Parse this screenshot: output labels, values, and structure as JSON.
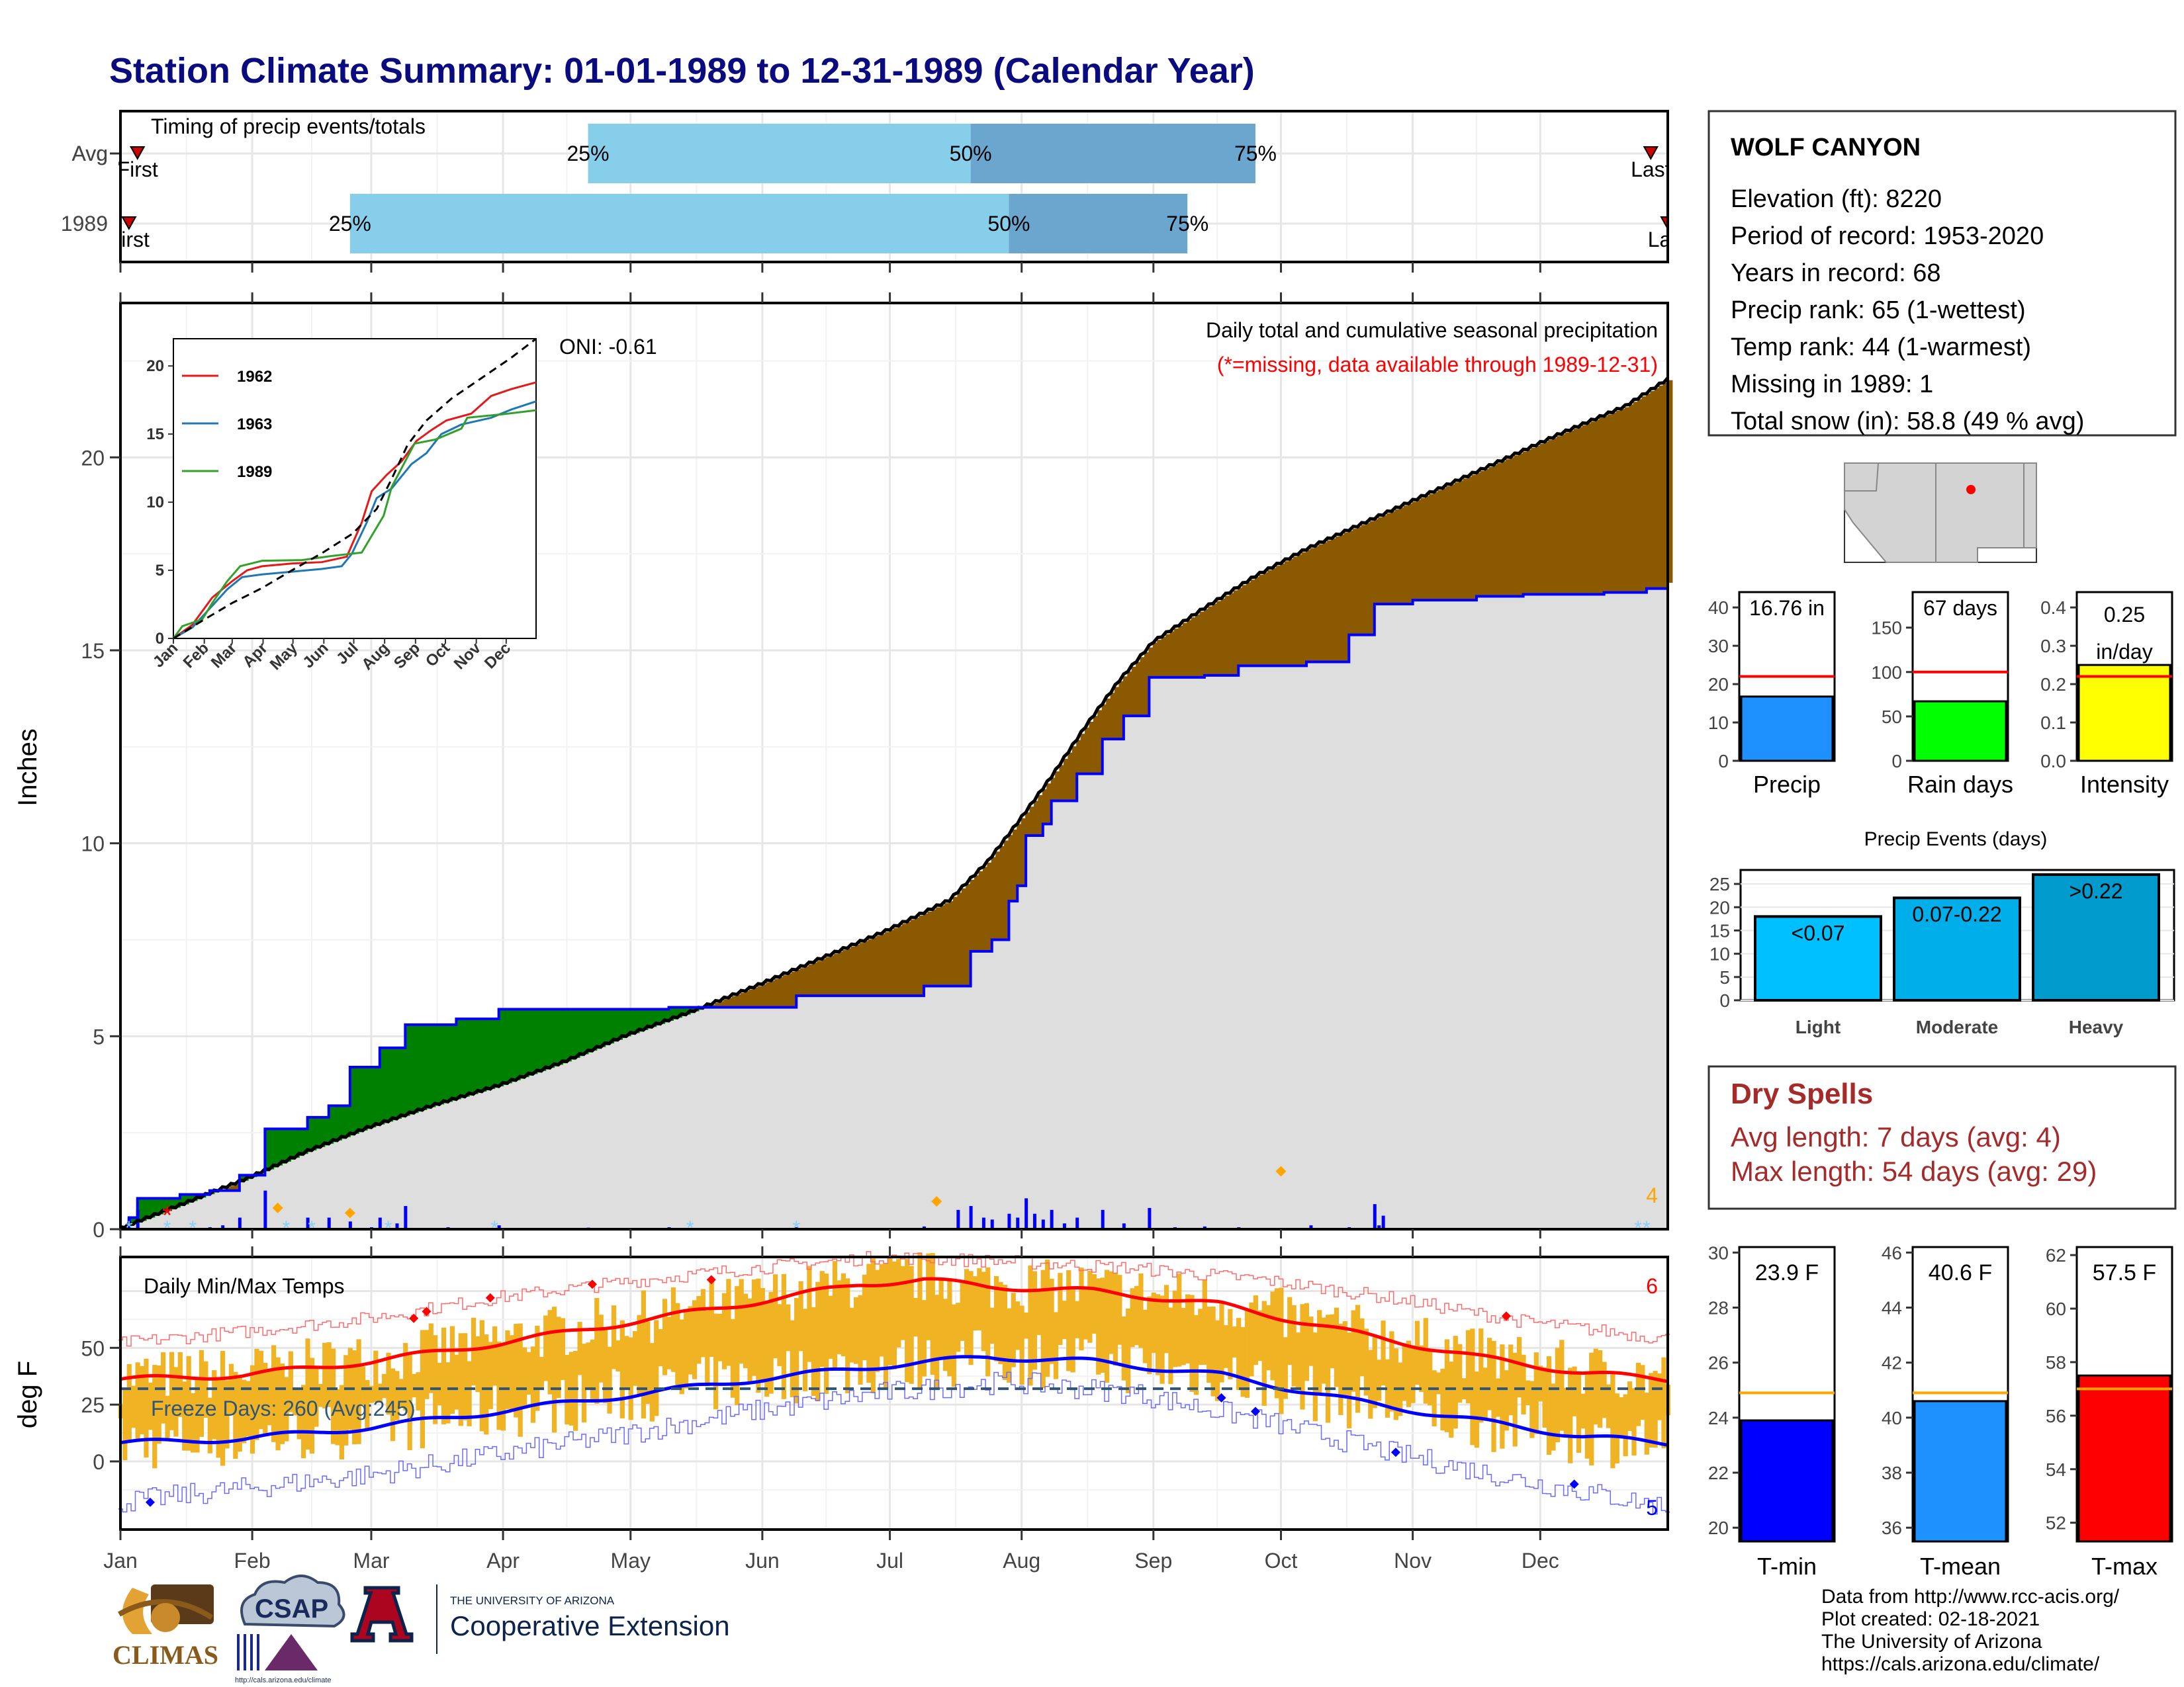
{
  "title": "Station Climate Summary: 01-01-1989 to 12-31-1989 (Calendar Year)",
  "colors": {
    "title": "#0b0b80",
    "avgBar": "#87ceeb",
    "avgBarDark": "#6aa6cd",
    "surplus": "#008000",
    "deficit": "#8b5a00",
    "missingRed": "#ff0000",
    "tmax": "#ff0000",
    "tmin": "#0000ff",
    "range": "#f0b323",
    "mean": "#ffa500",
    "dry": "#a52a2a"
  },
  "timing": {
    "label": "Timing of precip events/totals",
    "rows": [
      {
        "name": "Avg",
        "first_label": "First",
        "last_label": "Last",
        "q25": "25%",
        "q50": "50%",
        "q75": "75%",
        "first_day": 5,
        "last_day": 361,
        "d25": 111,
        "d50": 201,
        "d75": 268
      },
      {
        "name": "1989",
        "first_label": "First",
        "last_label": "Last",
        "q25": "25%",
        "q50": "50%",
        "q75": "75%",
        "first_day": 3,
        "last_day": 365,
        "d25": 55,
        "d50": 210,
        "d75": 252
      }
    ]
  },
  "months": [
    "Jan",
    "Feb",
    "Mar",
    "Apr",
    "May",
    "Jun",
    "Jul",
    "Aug",
    "Sep",
    "Oct",
    "Nov",
    "Dec"
  ],
  "precip_chart": {
    "ylabel": "Inches",
    "yticks": [
      "0",
      "5",
      "10",
      "15",
      "20"
    ],
    "ylim": [
      0,
      24
    ],
    "oni": "ONI: -0.61",
    "subtitle": "Daily total and cumulative seasonal precipitation",
    "missing_note": "(*=missing, data available through 1989-12-31)",
    "corner_label": "4",
    "avg_cum": [
      [
        1,
        0
      ],
      [
        15,
        0.6
      ],
      [
        31,
        1.3
      ],
      [
        45,
        2.0
      ],
      [
        59,
        2.6
      ],
      [
        75,
        3.2
      ],
      [
        90,
        3.7
      ],
      [
        105,
        4.3
      ],
      [
        120,
        5.0
      ],
      [
        135,
        5.6
      ],
      [
        151,
        6.3
      ],
      [
        166,
        7.0
      ],
      [
        181,
        7.7
      ],
      [
        196,
        8.5
      ],
      [
        205,
        9.5
      ],
      [
        212,
        10.5
      ],
      [
        220,
        11.7
      ],
      [
        228,
        13.0
      ],
      [
        236,
        14.2
      ],
      [
        244,
        15.2
      ],
      [
        255,
        16.0
      ],
      [
        268,
        16.9
      ],
      [
        280,
        17.6
      ],
      [
        300,
        18.6
      ],
      [
        320,
        19.6
      ],
      [
        340,
        20.6
      ],
      [
        355,
        21.3
      ],
      [
        365,
        22.0
      ]
    ],
    "obs_cum": [
      [
        1,
        0
      ],
      [
        3,
        0.3
      ],
      [
        5,
        0.8
      ],
      [
        15,
        0.9
      ],
      [
        22,
        1.0
      ],
      [
        29,
        1.4
      ],
      [
        35,
        2.6
      ],
      [
        45,
        2.9
      ],
      [
        50,
        3.2
      ],
      [
        55,
        4.2
      ],
      [
        62,
        4.7
      ],
      [
        68,
        5.3
      ],
      [
        80,
        5.45
      ],
      [
        90,
        5.7
      ],
      [
        130,
        5.75
      ],
      [
        160,
        6.05
      ],
      [
        190,
        6.3
      ],
      [
        201,
        7.2
      ],
      [
        206,
        7.5
      ],
      [
        210,
        8.5
      ],
      [
        212,
        8.9
      ],
      [
        214,
        10.2
      ],
      [
        218,
        10.5
      ],
      [
        220,
        11.1
      ],
      [
        226,
        11.8
      ],
      [
        232,
        12.7
      ],
      [
        237,
        13.3
      ],
      [
        243,
        14.3
      ],
      [
        256,
        14.35
      ],
      [
        264,
        14.6
      ],
      [
        280,
        14.7
      ],
      [
        290,
        15.4
      ],
      [
        296,
        16.2
      ],
      [
        305,
        16.3
      ],
      [
        320,
        16.4
      ],
      [
        331,
        16.45
      ],
      [
        350,
        16.5
      ],
      [
        360,
        16.6
      ],
      [
        365,
        16.75
      ]
    ],
    "daily_values": [
      [
        3,
        0.3
      ],
      [
        5,
        0.5
      ],
      [
        22,
        0.05
      ],
      [
        25,
        0.1
      ],
      [
        29,
        0.3
      ],
      [
        35,
        1.0
      ],
      [
        45,
        0.3
      ],
      [
        50,
        0.3
      ],
      [
        55,
        0.2
      ],
      [
        60,
        0.05
      ],
      [
        62,
        0.3
      ],
      [
        66,
        0.15
      ],
      [
        68,
        0.6
      ],
      [
        78,
        0.05
      ],
      [
        90,
        0.1
      ],
      [
        111,
        0.04
      ],
      [
        130,
        0.05
      ],
      [
        160,
        0.05
      ],
      [
        190,
        0.07
      ],
      [
        198,
        0.5
      ],
      [
        201,
        0.6
      ],
      [
        204,
        0.3
      ],
      [
        206,
        0.25
      ],
      [
        210,
        0.4
      ],
      [
        212,
        0.3
      ],
      [
        214,
        0.8
      ],
      [
        216,
        0.4
      ],
      [
        218,
        0.25
      ],
      [
        220,
        0.5
      ],
      [
        223,
        0.15
      ],
      [
        226,
        0.3
      ],
      [
        232,
        0.5
      ],
      [
        237,
        0.15
      ],
      [
        243,
        0.55
      ],
      [
        249,
        0.05
      ],
      [
        256,
        0.07
      ],
      [
        264,
        0.05
      ],
      [
        281,
        0.1
      ],
      [
        290,
        0.05
      ],
      [
        296,
        0.65
      ],
      [
        297,
        0.1
      ],
      [
        298,
        0.35
      ],
      [
        330,
        0.03
      ],
      [
        344,
        0.03
      ],
      [
        350,
        0.03
      ],
      [
        355,
        0.03
      ],
      [
        363,
        0.02
      ]
    ],
    "missing_day": 12,
    "snow_days": [
      3,
      12,
      18,
      40,
      46,
      64,
      89,
      135,
      160,
      360,
      358
    ],
    "orange_markers": [
      [
        38,
        0.55
      ],
      [
        55,
        0.42
      ],
      [
        193,
        0.72
      ],
      [
        274,
        1.5
      ]
    ],
    "inset": {
      "yticks": [
        "0",
        "5",
        "10",
        "15",
        "20"
      ],
      "ylim": [
        0,
        22
      ],
      "series": [
        {
          "name": "1962",
          "color": "#e31a1c",
          "points": [
            [
              1,
              0
            ],
            [
              20,
              1.0
            ],
            [
              40,
              3.0
            ],
            [
              60,
              4.2
            ],
            [
              75,
              5.0
            ],
            [
              90,
              5.3
            ],
            [
              120,
              5.5
            ],
            [
              150,
              5.6
            ],
            [
              175,
              6.0
            ],
            [
              190,
              8.5
            ],
            [
              200,
              10.8
            ],
            [
              215,
              12.0
            ],
            [
              230,
              13.0
            ],
            [
              245,
              14.5
            ],
            [
              260,
              15.3
            ],
            [
              275,
              16.0
            ],
            [
              300,
              16.5
            ],
            [
              320,
              17.8
            ],
            [
              340,
              18.3
            ],
            [
              365,
              18.8
            ]
          ]
        },
        {
          "name": "1963",
          "color": "#1f78b4",
          "points": [
            [
              1,
              0
            ],
            [
              20,
              0.8
            ],
            [
              40,
              2.4
            ],
            [
              55,
              3.6
            ],
            [
              70,
              4.5
            ],
            [
              90,
              4.7
            ],
            [
              120,
              4.9
            ],
            [
              150,
              5.1
            ],
            [
              170,
              5.3
            ],
            [
              180,
              6.2
            ],
            [
              195,
              8.5
            ],
            [
              205,
              10.3
            ],
            [
              220,
              11.0
            ],
            [
              240,
              12.8
            ],
            [
              255,
              13.6
            ],
            [
              270,
              15.0
            ],
            [
              290,
              15.7
            ],
            [
              320,
              16.2
            ],
            [
              340,
              16.8
            ],
            [
              365,
              17.4
            ]
          ]
        },
        {
          "name": "1989",
          "color": "#33a02c",
          "points": [
            [
              1,
              0
            ],
            [
              10,
              0.9
            ],
            [
              30,
              1.4
            ],
            [
              40,
              2.6
            ],
            [
              55,
              4.2
            ],
            [
              68,
              5.3
            ],
            [
              90,
              5.7
            ],
            [
              130,
              5.75
            ],
            [
              160,
              6.05
            ],
            [
              190,
              6.3
            ],
            [
              212,
              9.0
            ],
            [
              220,
              11.1
            ],
            [
              243,
              14.3
            ],
            [
              264,
              14.6
            ],
            [
              290,
              15.4
            ],
            [
              296,
              16.2
            ],
            [
              331,
              16.45
            ],
            [
              365,
              16.75
            ]
          ]
        }
      ],
      "normal": [
        [
          1,
          0
        ],
        [
          30,
          1.3
        ],
        [
          60,
          2.6
        ],
        [
          90,
          3.7
        ],
        [
          120,
          5.0
        ],
        [
          151,
          6.3
        ],
        [
          181,
          7.7
        ],
        [
          205,
          9.5
        ],
        [
          220,
          11.7
        ],
        [
          236,
          14.2
        ],
        [
          255,
          16.0
        ],
        [
          280,
          17.6
        ],
        [
          300,
          18.6
        ],
        [
          320,
          19.6
        ],
        [
          340,
          20.6
        ],
        [
          365,
          22.0
        ]
      ]
    }
  },
  "temp_chart": {
    "ylabel": "deg F",
    "yticks": [
      "0",
      "25",
      "50"
    ],
    "ylim": [
      -30,
      90
    ],
    "label": "Daily Min/Max Temps",
    "freeze": "Freeze Days: 260 (Avg:245)",
    "freeze_line": 32,
    "corner_top": "6",
    "corner_bottom": "5",
    "avg_max": [
      [
        1,
        36
      ],
      [
        30,
        38
      ],
      [
        60,
        44
      ],
      [
        90,
        52
      ],
      [
        120,
        61
      ],
      [
        150,
        70
      ],
      [
        175,
        78
      ],
      [
        190,
        80
      ],
      [
        205,
        77
      ],
      [
        230,
        75
      ],
      [
        260,
        69
      ],
      [
        290,
        57
      ],
      [
        320,
        46
      ],
      [
        345,
        39
      ],
      [
        365,
        36
      ]
    ],
    "avg_min": [
      [
        1,
        8
      ],
      [
        30,
        10
      ],
      [
        60,
        15
      ],
      [
        90,
        22
      ],
      [
        120,
        29
      ],
      [
        150,
        36
      ],
      [
        180,
        42
      ],
      [
        205,
        46
      ],
      [
        230,
        44
      ],
      [
        260,
        38
      ],
      [
        290,
        27
      ],
      [
        320,
        18
      ],
      [
        345,
        11
      ],
      [
        365,
        8
      ]
    ],
    "rec_max": [
      [
        1,
        52
      ],
      [
        30,
        57
      ],
      [
        60,
        63
      ],
      [
        90,
        72
      ],
      [
        120,
        79
      ],
      [
        150,
        85
      ],
      [
        180,
        90
      ],
      [
        210,
        88
      ],
      [
        240,
        85
      ],
      [
        270,
        80
      ],
      [
        300,
        72
      ],
      [
        330,
        62
      ],
      [
        365,
        54
      ]
    ],
    "rec_min": [
      [
        1,
        -18
      ],
      [
        30,
        -12
      ],
      [
        60,
        -6
      ],
      [
        90,
        3
      ],
      [
        120,
        12
      ],
      [
        150,
        22
      ],
      [
        180,
        30
      ],
      [
        210,
        35
      ],
      [
        240,
        30
      ],
      [
        270,
        18
      ],
      [
        300,
        4
      ],
      [
        330,
        -8
      ],
      [
        365,
        -20
      ]
    ]
  },
  "station": {
    "name": "WOLF CANYON",
    "lines": [
      "Elevation (ft): 8220",
      "Period of record: 1953-2020",
      "Years in record: 68",
      "Precip rank: 65 (1-wettest)",
      "Temp rank: 44 (1-warmest)",
      "Missing in 1989: 1",
      "Total snow (in): 58.8 (49 % avg)"
    ]
  },
  "mini_bars": [
    {
      "name": "Precip",
      "value_label": "16.76 in",
      "value": 16.76,
      "avg": 22.0,
      "ylim": [
        0,
        44
      ],
      "yticks": [
        "0",
        "10",
        "20",
        "30",
        "40"
      ],
      "tickvals": [
        0,
        10,
        20,
        30,
        40
      ],
      "color": "#1e90ff"
    },
    {
      "name": "Rain days",
      "value_label": "67 days",
      "value": 67,
      "avg": 100,
      "ylim": [
        0,
        190
      ],
      "yticks": [
        "0",
        "50",
        "100",
        "150"
      ],
      "tickvals": [
        0,
        50,
        100,
        150
      ],
      "color": "#00ff00"
    },
    {
      "name": "Intensity",
      "value_label": "0.25",
      "value_label2": "in/day",
      "value": 0.25,
      "avg": 0.22,
      "ylim": [
        0,
        0.44
      ],
      "yticks": [
        "0.0",
        "0.1",
        "0.2",
        "0.3",
        "0.4"
      ],
      "tickvals": [
        0,
        0.1,
        0.2,
        0.3,
        0.4
      ],
      "color": "#ffff00"
    }
  ],
  "events": {
    "title": "Precip Events (days)",
    "yticks": [
      "0",
      "5",
      "10",
      "15",
      "20",
      "25"
    ],
    "tickvals": [
      0,
      5,
      10,
      15,
      20,
      25
    ],
    "ylim": [
      0,
      28
    ],
    "bars": [
      {
        "name": "Light",
        "label": "<0.07",
        "value": 18,
        "color": "#00bfff"
      },
      {
        "name": "Moderate",
        "label": "0.07-0.22",
        "value": 22,
        "color": "#00aeea"
      },
      {
        "name": "Heavy",
        "label": ">0.22",
        "value": 27,
        "color": "#009acd"
      }
    ]
  },
  "dry": {
    "title": "Dry Spells",
    "avg_line": "Avg length: 7 days (avg: 4)",
    "max_line": "Max length: 54 days (avg: 29)"
  },
  "temp_bars": [
    {
      "name": "T-min",
      "value_label": "23.9 F",
      "value": 23.9,
      "avg": 24.9,
      "ylim": [
        19.5,
        30.2
      ],
      "yticks": [
        "20",
        "22",
        "24",
        "26",
        "28",
        "30"
      ],
      "tickvals": [
        20,
        22,
        24,
        26,
        28,
        30
      ],
      "color": "#0000ff"
    },
    {
      "name": "T-mean",
      "value_label": "40.6 F",
      "value": 40.6,
      "avg": 40.9,
      "ylim": [
        35.5,
        46.2
      ],
      "yticks": [
        "36",
        "38",
        "40",
        "42",
        "44",
        "46"
      ],
      "tickvals": [
        36,
        38,
        40,
        42,
        44,
        46
      ],
      "color": "#1e90ff"
    },
    {
      "name": "T-max",
      "value_label": "57.5 F",
      "value": 57.5,
      "avg": 57.0,
      "ylim": [
        51.3,
        62.3
      ],
      "yticks": [
        "52",
        "54",
        "56",
        "58",
        "60",
        "62"
      ],
      "tickvals": [
        52,
        54,
        56,
        58,
        60,
        62
      ],
      "color": "#ff0000"
    }
  ],
  "credits": [
    "Data from http://www.rcc-acis.org/",
    "Plot created: 02-18-2021",
    "The University of Arizona",
    "https://cals.arizona.edu/climate/"
  ],
  "logos": {
    "climas": "CLIMAS",
    "csap": "CSAP",
    "csap_url": "http://cals.arizona.edu/climate",
    "ua_small": "THE UNIVERSITY OF ARIZONA",
    "ua_big": "Cooperative Extension"
  }
}
